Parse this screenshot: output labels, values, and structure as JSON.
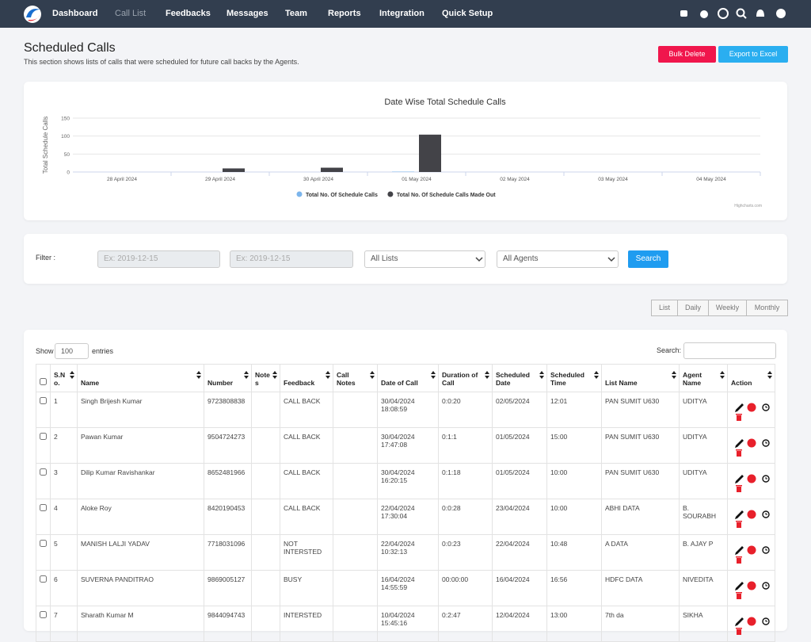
{
  "nav": {
    "items": [
      "Dashboard",
      "Call List",
      "Feedbacks",
      "Messages",
      "Team",
      "Reports",
      "Integration",
      "Quick Setup"
    ]
  },
  "header": {
    "title": "Scheduled Calls",
    "subtitle": "This section shows lists of calls that were scheduled for future call backs by the Agents.",
    "bulk_delete": "Bulk Delete",
    "export": "Export to Excel"
  },
  "chart_data": {
    "type": "bar",
    "title": "Date Wise Total Schedule Calls",
    "y_label": "Total Schedule Calls",
    "categories": [
      "28 April 2024",
      "29 April 2024",
      "30 April 2024",
      "01 May 2024",
      "02 May 2024",
      "03 May 2024",
      "04 May 2024"
    ],
    "series": [
      {
        "name": "Total No. Of Schedule Calls",
        "color": "#7cb5ec",
        "values": [
          0,
          0,
          0,
          1,
          0,
          0,
          0
        ]
      },
      {
        "name": "Total No. Of Schedule Calls Made Out",
        "color": "#434348",
        "values": [
          0,
          10,
          12,
          104,
          0,
          0,
          0
        ]
      }
    ],
    "ylim": [
      0,
      150
    ],
    "yticks": [
      0,
      50,
      100,
      150
    ],
    "grid": true,
    "credit": "Highcharts.com"
  },
  "filter": {
    "label": "Filter :",
    "from_placeholder": "Ex: 2019-12-15",
    "to_placeholder": "Ex: 2019-12-15",
    "list_select": "All Lists",
    "agent_select": "All Agents",
    "search": "Search"
  },
  "views": [
    "List",
    "Daily",
    "Weekly",
    "Monthly"
  ],
  "table": {
    "show": "Show",
    "entries_count": "100",
    "entries": "entries",
    "search_label": "Search:",
    "columns": [
      "S.No.",
      "Name",
      "Number",
      "Notes",
      "Feedback",
      "Call Notes",
      "Date of Call",
      "Duration of Call",
      "Scheduled Date",
      "Scheduled Time",
      "List Name",
      "Agent Name",
      "Action"
    ],
    "rows": [
      {
        "sno": "1",
        "name": "Singh Brijesh Kumar",
        "number": "9723808838",
        "feedback": "CALL BACK",
        "date": "30/04/2024 18:08:59",
        "duration": "0:0:20",
        "sched_date": "02/05/2024",
        "sched_time": "12:01",
        "list": "PAN SUMIT U630",
        "agent": "UDITYA"
      },
      {
        "sno": "2",
        "name": "Pawan Kumar",
        "number": "9504724273",
        "feedback": "CALL BACK",
        "date": "30/04/2024 17:47:08",
        "duration": "0:1:1",
        "sched_date": "01/05/2024",
        "sched_time": "15:00",
        "list": "PAN SUMIT U630",
        "agent": "UDITYA"
      },
      {
        "sno": "3",
        "name": "Dilip Kumar Ravishankar",
        "number": "8652481966",
        "feedback": "CALL BACK",
        "date": "30/04/2024 16:20:15",
        "duration": "0:1:18",
        "sched_date": "01/05/2024",
        "sched_time": "10:00",
        "list": "PAN SUMIT U630",
        "agent": "UDITYA"
      },
      {
        "sno": "4",
        "name": "Aloke Roy",
        "number": "8420190453",
        "feedback": "CALL BACK",
        "date": "22/04/2024 17:30:04",
        "duration": "0:0:28",
        "sched_date": "23/04/2024",
        "sched_time": "10:00",
        "list": "ABHI DATA",
        "agent": "B. SOURABH"
      },
      {
        "sno": "5",
        "name": "MANISH LALJI YADAV",
        "number": "7718031096",
        "feedback": "NOT INTERSTED",
        "date": "22/04/2024 10:32:13",
        "duration": "0:0:23",
        "sched_date": "22/04/2024",
        "sched_time": "10:48",
        "list": "A DATA",
        "agent": "B. AJAY P"
      },
      {
        "sno": "6",
        "name": "SUVERNA PANDITRAO",
        "number": "9869005127",
        "feedback": "BUSY",
        "date": "16/04/2024 14:55:59",
        "duration": "00:00:00",
        "sched_date": "16/04/2024",
        "sched_time": "16:56",
        "list": "HDFC DATA",
        "agent": "NIVEDITA"
      },
      {
        "sno": "7",
        "name": "Sharath Kumar M",
        "number": "9844094743",
        "feedback": "INTERSTED",
        "date": "10/04/2024 15:45:16",
        "duration": "0:2:47",
        "sched_date": "12/04/2024",
        "sched_time": "13:00",
        "list": "7th da",
        "agent": "SIKHA"
      }
    ]
  }
}
